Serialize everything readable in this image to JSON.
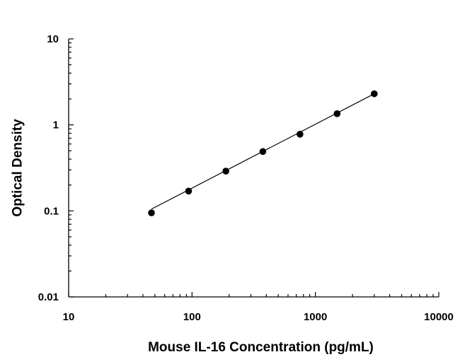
{
  "chart_data": {
    "type": "scatter",
    "title": "",
    "xlabel": "Mouse IL-16 Concentration (pg/mL)",
    "ylabel": "Optical Density",
    "xscale": "log",
    "yscale": "log",
    "xlim": [
      10,
      10000
    ],
    "ylim": [
      0.01,
      10
    ],
    "grid": false,
    "x_tick_labels": [
      "10",
      "100",
      "1000",
      "10000"
    ],
    "y_tick_labels": [
      "0.01",
      "0.1",
      "1",
      "10"
    ],
    "series": [
      {
        "x": [
          46.9,
          93.8,
          188,
          375,
          750,
          1500,
          3000
        ],
        "y": [
          0.095,
          0.17,
          0.29,
          0.49,
          0.78,
          1.35,
          2.3
        ]
      }
    ],
    "fit_line": {
      "x": [
        46.9,
        3000
      ],
      "y": [
        0.105,
        2.3
      ]
    }
  }
}
